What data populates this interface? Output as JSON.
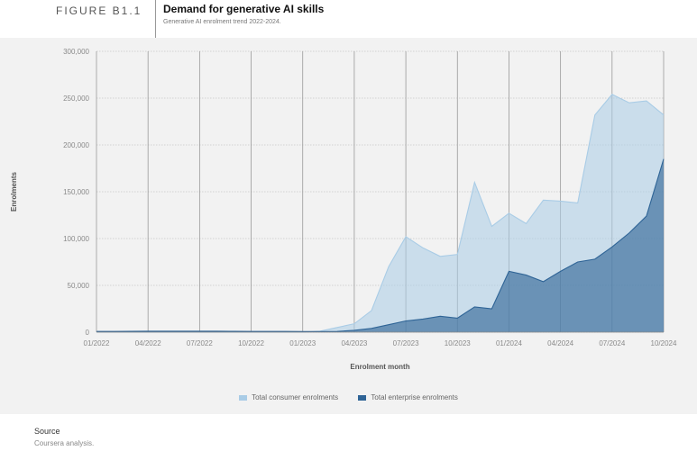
{
  "figure": {
    "label": "FIGURE B1.1",
    "title": "Demand for generative AI skills",
    "subtitle": "Generative AI enrolment trend 2022-2024."
  },
  "source": {
    "heading": "Source",
    "text": "Coursera analysis."
  },
  "chart_data": {
    "type": "area",
    "xlabel": "Enrolment month",
    "ylabel": "Enrolments",
    "ylim": [
      0,
      300000
    ],
    "y_ticks": [
      "0",
      "50,000",
      "100,000",
      "150,000",
      "200,000",
      "250,000",
      "300,000"
    ],
    "x_tick_labels": [
      "01/2022",
      "04/2022",
      "07/2022",
      "10/2022",
      "01/2023",
      "04/2023",
      "07/2023",
      "10/2023",
      "01/2024",
      "04/2024",
      "07/2024",
      "10/2024"
    ],
    "x_months": [
      "01/2022",
      "02/2022",
      "03/2022",
      "04/2022",
      "05/2022",
      "06/2022",
      "07/2022",
      "08/2022",
      "09/2022",
      "10/2022",
      "11/2022",
      "12/2022",
      "01/2023",
      "02/2023",
      "03/2023",
      "04/2023",
      "05/2023",
      "06/2023",
      "07/2023",
      "08/2023",
      "09/2023",
      "10/2023",
      "11/2023",
      "12/2023",
      "01/2024",
      "02/2024",
      "03/2024",
      "04/2024",
      "05/2024",
      "06/2024",
      "07/2024",
      "08/2024",
      "09/2024",
      "10/2024"
    ],
    "grid": true,
    "legend_position": "bottom",
    "series": [
      {
        "name": "Total consumer enrolments",
        "color": "#a9cce6",
        "values": [
          0,
          0,
          0,
          0,
          0,
          0,
          0,
          0,
          0,
          0,
          0,
          0,
          0,
          1000,
          5000,
          9000,
          23000,
          70000,
          102000,
          90000,
          81000,
          83000,
          160000,
          113000,
          127000,
          116000,
          141000,
          140000,
          138000,
          232000,
          254000,
          245000,
          247000,
          232000
        ]
      },
      {
        "name": "Total enterprise enrolments",
        "color": "#2f6496",
        "values": [
          800,
          800,
          900,
          1000,
          1000,
          1000,
          1000,
          1000,
          900,
          800,
          800,
          800,
          700,
          700,
          800,
          2000,
          4000,
          8000,
          12000,
          14000,
          17000,
          15000,
          27000,
          25000,
          65000,
          61000,
          54000,
          65000,
          75000,
          78000,
          91000,
          106000,
          124000,
          185000
        ]
      }
    ]
  }
}
